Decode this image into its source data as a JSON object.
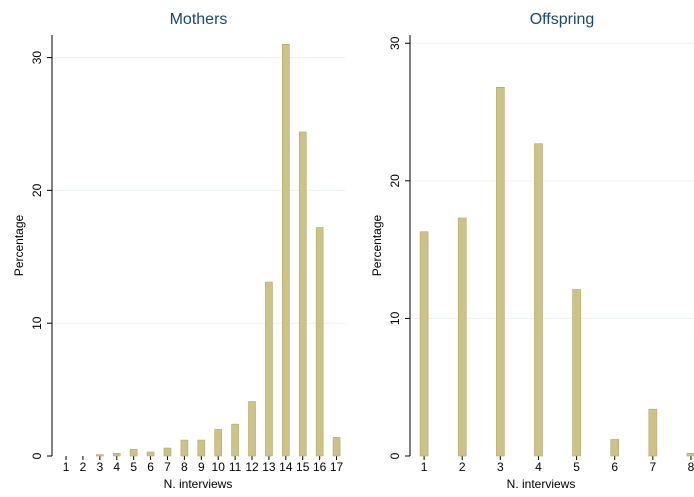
{
  "chart_data": [
    {
      "type": "bar",
      "title": "Mothers",
      "x_label": "N. interviews",
      "y_label": "Percentage",
      "x": [
        1,
        2,
        3,
        4,
        5,
        6,
        7,
        8,
        9,
        10,
        11,
        12,
        13,
        14,
        15,
        16,
        17
      ],
      "values": [
        0,
        0,
        0.1,
        0.2,
        0.5,
        0.3,
        0.6,
        1.2,
        1.2,
        2.0,
        2.4,
        4.1,
        13.1,
        31.0,
        24.4,
        17.2,
        1.4
      ],
      "color": "#cdc38a",
      "xlim": [
        0.17,
        17.5
      ],
      "xticks": [
        1,
        2,
        3,
        4,
        5,
        6,
        7,
        8,
        9,
        10,
        11,
        12,
        13,
        14,
        15,
        16,
        17
      ],
      "ylim": [
        0,
        31.7
      ],
      "yticks": [
        0,
        10,
        20,
        30
      ],
      "grid": true
    },
    {
      "type": "bar",
      "title": "Offspring",
      "x_label": "N. interviews",
      "y_label": "Percentage",
      "x": [
        1,
        2,
        3,
        4,
        5,
        6,
        7,
        8
      ],
      "values": [
        16.3,
        17.3,
        26.8,
        22.7,
        12.1,
        1.2,
        3.4,
        0.2
      ],
      "color": "#cdc38a",
      "xlim": [
        0.63,
        8.08
      ],
      "xticks": [
        1,
        2,
        3,
        4,
        5,
        6,
        7,
        8
      ],
      "ylim": [
        0,
        30.6
      ],
      "yticks": [
        0,
        10,
        20,
        30
      ],
      "grid": true
    }
  ]
}
